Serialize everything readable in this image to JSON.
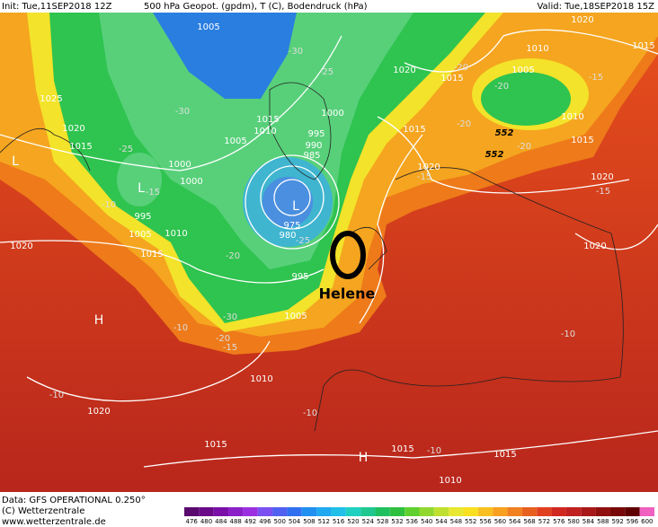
{
  "header": {
    "init": "Init: Tue,11SEP2018 12Z",
    "title": "500 hPa Geopot. (gpdm), T (C), Bodendruck (hPa)",
    "valid": "Valid: Tue,18SEP2018 15Z"
  },
  "footer": {
    "data": "Data: GFS OPERATIONAL 0.250°",
    "copyright": "(C) Wetterzentrale",
    "url": "www.wetterzentrale.de"
  },
  "scale": [
    "476",
    "480",
    "484",
    "488",
    "492",
    "496",
    "500",
    "504",
    "508",
    "512",
    "516",
    "520",
    "524",
    "528",
    "532",
    "536",
    "540",
    "544",
    "548",
    "552",
    "556",
    "560",
    "564",
    "568",
    "572",
    "576",
    "580",
    "584",
    "588",
    "592",
    "596",
    "600"
  ],
  "storm": "Helene",
  "pressure_centers": [
    "H",
    "H",
    "L",
    "L",
    "L"
  ],
  "isobar_labels": [
    "1005",
    "1025",
    "1020",
    "1015",
    "1015",
    "1010",
    "1005",
    "1000",
    "1000",
    "995",
    "1005",
    "1010",
    "1015",
    "1020",
    "995",
    "990",
    "985",
    "975",
    "980",
    "995",
    "1005",
    "1000",
    "1020",
    "1015",
    "1005",
    "1010",
    "1020",
    "1015",
    "1010",
    "1015",
    "1020",
    "1015",
    "1020",
    "1020",
    "1010",
    "1020",
    "1015",
    "1015",
    "1015",
    "1010"
  ],
  "temperature_labels": [
    "-30",
    "-25",
    "-30",
    "-25",
    "-20",
    "-20",
    "-15",
    "-20",
    "-20",
    "-15",
    "-15",
    "-10",
    "-15",
    "-20",
    "-25",
    "-30",
    "-20",
    "-15",
    "-10",
    "-10",
    "-10",
    "-10",
    "-10"
  ],
  "height_labels": [
    "552",
    "552"
  ]
}
